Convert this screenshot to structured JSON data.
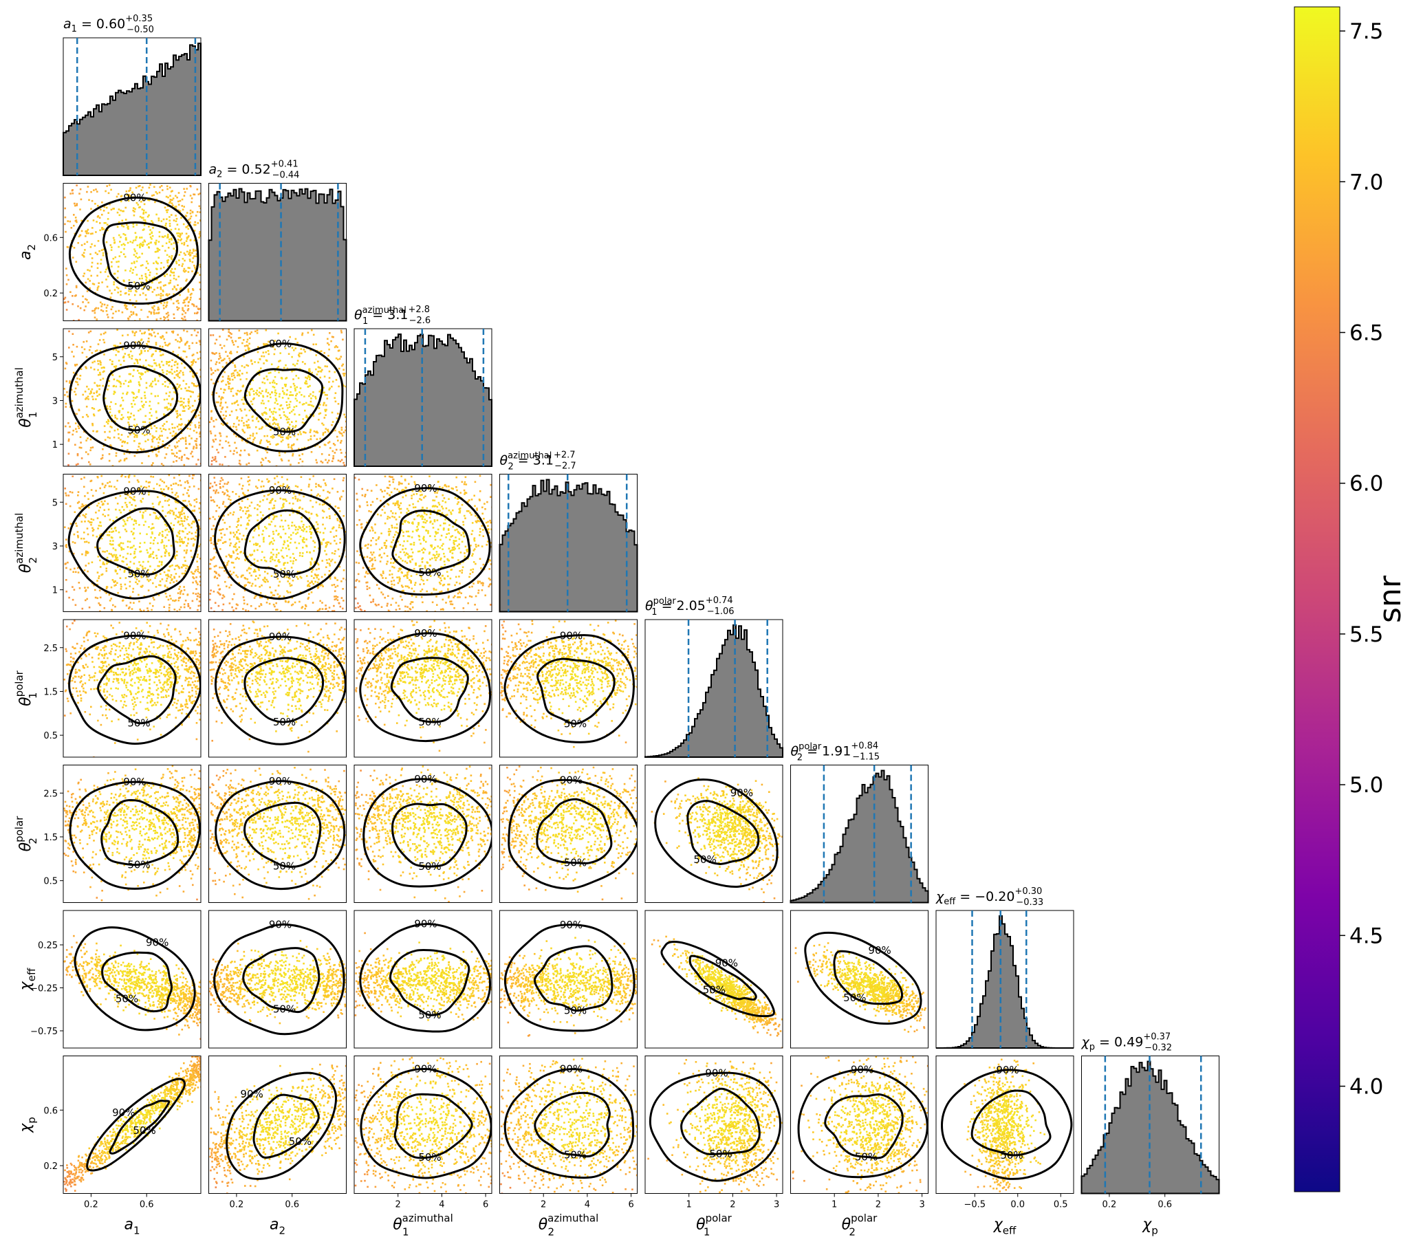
{
  "chart_data": {
    "type": "corner",
    "parameters": [
      {
        "key": "a1",
        "sym": "a",
        "sub": "1",
        "sup": "",
        "range": [
          0,
          0.99
        ],
        "ticks": [
          0.2,
          0.6
        ],
        "tick_labels": [
          "0.2",
          "0.6"
        ],
        "dist": {
          "kind": "ramp",
          "lo": 0.35,
          "hi": 1.0
        },
        "title": {
          "median": "0.60",
          "plus": "+0.35",
          "minus": "−0.50"
        },
        "quantiles": [
          0.1,
          0.6,
          0.95
        ]
      },
      {
        "key": "a2",
        "sym": "a",
        "sub": "2",
        "sup": "",
        "range": [
          0,
          0.99
        ],
        "ticks": [
          0.2,
          0.6
        ],
        "tick_labels": [
          "0.2",
          "0.6"
        ],
        "dist": {
          "kind": "flat",
          "edge": 0.04
        },
        "title": {
          "median": "0.52",
          "plus": "+0.41",
          "minus": "−0.44"
        },
        "quantiles": [
          0.08,
          0.52,
          0.93
        ]
      },
      {
        "key": "theta1_az",
        "sym": "θ",
        "sub": "1",
        "sup": "azimuthal",
        "range": [
          0,
          6.28
        ],
        "ticks": [
          2,
          4,
          6
        ],
        "tick_labels": [
          "2",
          "4",
          "6"
        ],
        "ticks_left": [
          1,
          3,
          5
        ],
        "tick_labels_left": [
          "1",
          "3",
          "5"
        ],
        "dist": {
          "kind": "flat",
          "edge": 0.25
        },
        "title": {
          "median": "3.1",
          "plus": "+2.8",
          "minus": "−2.6"
        },
        "quantiles": [
          0.5,
          3.1,
          5.9
        ]
      },
      {
        "key": "theta2_az",
        "sym": "θ",
        "sub": "2",
        "sup": "azimuthal",
        "range": [
          0,
          6.28
        ],
        "ticks": [
          2,
          4,
          6
        ],
        "tick_labels": [
          "2",
          "4",
          "6"
        ],
        "ticks_left": [
          1,
          3,
          5
        ],
        "tick_labels_left": [
          "1",
          "3",
          "5"
        ],
        "dist": {
          "kind": "flat",
          "edge": 0.25
        },
        "title": {
          "median": "3.1",
          "plus": "+2.7",
          "minus": "−2.7"
        },
        "quantiles": [
          0.4,
          3.1,
          5.8
        ]
      },
      {
        "key": "theta1_pol",
        "sym": "θ",
        "sub": "1",
        "sup": "polar",
        "range": [
          0,
          3.14
        ],
        "ticks": [
          1,
          2,
          3
        ],
        "tick_labels": [
          "1",
          "2",
          "3"
        ],
        "ticks_left": [
          0.5,
          1.5,
          2.5
        ],
        "tick_labels_left": [
          "0.5",
          "1.5",
          "2.5"
        ],
        "dist": {
          "kind": "skew",
          "mu": 2.15,
          "sdl": 0.62,
          "sdr": 0.42
        },
        "title": {
          "median": "2.05",
          "plus": "+0.74",
          "minus": "−1.06"
        },
        "quantiles": [
          0.99,
          2.05,
          2.79
        ]
      },
      {
        "key": "theta2_pol",
        "sym": "θ",
        "sub": "2",
        "sup": "polar",
        "range": [
          0,
          3.14
        ],
        "ticks": [
          1,
          2,
          3
        ],
        "tick_labels": [
          "1",
          "2",
          "3"
        ],
        "ticks_left": [
          0.5,
          1.5,
          2.5
        ],
        "tick_labels_left": [
          "0.5",
          "1.5",
          "2.5"
        ],
        "dist": {
          "kind": "skew",
          "mu": 2.05,
          "sdl": 0.7,
          "sdr": 0.48
        },
        "title": {
          "median": "1.91",
          "plus": "+0.84",
          "minus": "−1.15"
        },
        "quantiles": [
          0.76,
          1.91,
          2.75
        ]
      },
      {
        "key": "chi_eff",
        "sym": "χ",
        "sub": "eff",
        "sup": "",
        "range": [
          -0.95,
          0.65
        ],
        "ticks": [
          -0.5,
          0.0,
          0.5
        ],
        "tick_labels": [
          "−0.5",
          "0.0",
          "0.5"
        ],
        "ticks_left": [
          -0.75,
          -0.25,
          0.25
        ],
        "tick_labels_left": [
          "−0.75",
          "−0.25",
          "0.25"
        ],
        "dist": {
          "kind": "skew",
          "mu": -0.17,
          "sdl": 0.17,
          "sdr": 0.15
        },
        "title": {
          "median": "−0.20",
          "plus": "+0.30",
          "minus": "−0.33"
        },
        "quantiles": [
          -0.53,
          -0.2,
          0.1
        ]
      },
      {
        "key": "chi_p",
        "sym": "χ",
        "sub": "p",
        "sup": "",
        "range": [
          0,
          0.99
        ],
        "ticks": [
          0.2,
          0.6
        ],
        "tick_labels": [
          "0.2",
          "0.6"
        ],
        "dist": {
          "kind": "skew",
          "mu": 0.45,
          "sdl": 0.22,
          "sdr": 0.25
        },
        "title": {
          "median": "0.49",
          "plus": "+0.37",
          "minus": "−0.32"
        },
        "quantiles": [
          0.17,
          0.49,
          0.86
        ]
      }
    ],
    "contour_levels": [
      "50%",
      "90%"
    ],
    "colorbar": {
      "label": "snr",
      "range": [
        3.65,
        7.58
      ],
      "ticks": [
        4.0,
        4.5,
        5.0,
        5.5,
        6.0,
        6.5,
        7.0,
        7.5
      ],
      "tick_labels": [
        "4.0",
        "4.5",
        "5.0",
        "5.5",
        "6.0",
        "6.5",
        "7.0",
        "7.5"
      ],
      "colormap": "plasma"
    },
    "colors": {
      "histogram_fill": "#808080",
      "histogram_edge": "#000000",
      "quantile_line": "#1f77b4",
      "contour": "#000000"
    }
  }
}
